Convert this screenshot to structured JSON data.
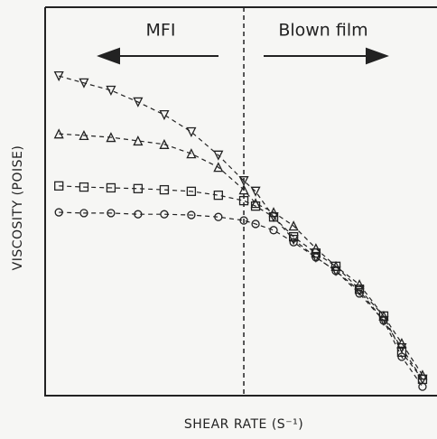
{
  "chart_data": {
    "type": "scatter",
    "x_label": "SHEAR RATE (S⁻¹)",
    "y_label": "VISCOSITY (POISE)",
    "annotations": [
      "MFI",
      "Blown film"
    ],
    "divider_x": 5.07,
    "xlim": [
      0,
      10
    ],
    "ylim": [
      0,
      10
    ],
    "color": "#222222",
    "fit_lines": true,
    "x": [
      0.35,
      0.99,
      1.68,
      2.37,
      3.04,
      3.73,
      4.42,
      5.07,
      5.37,
      5.83,
      6.34,
      6.91,
      7.42,
      8.02,
      8.64,
      9.1,
      9.63
    ],
    "series": [
      {
        "marker": "down-triangle",
        "values": [
          8.23,
          8.05,
          7.86,
          7.56,
          7.23,
          6.79,
          6.19,
          5.53,
          5.26,
          4.6,
          4.02,
          3.56,
          3.21,
          2.7,
          1.93,
          1.23,
          0.42
        ]
      },
      {
        "marker": "up-triangle",
        "values": [
          6.74,
          6.7,
          6.65,
          6.56,
          6.47,
          6.23,
          5.88,
          5.3,
          4.95,
          4.72,
          4.37,
          3.79,
          3.33,
          2.86,
          2.05,
          1.35,
          0.53
        ]
      },
      {
        "marker": "square",
        "values": [
          5.4,
          5.37,
          5.35,
          5.33,
          5.3,
          5.26,
          5.16,
          5.02,
          4.88,
          4.6,
          4.09,
          3.67,
          3.33,
          2.74,
          2.05,
          1.12,
          0.42
        ]
      },
      {
        "marker": "circle",
        "values": [
          4.72,
          4.7,
          4.7,
          4.67,
          4.67,
          4.65,
          4.6,
          4.51,
          4.42,
          4.26,
          3.95,
          3.56,
          3.21,
          2.63,
          1.93,
          1.0,
          0.23
        ]
      }
    ]
  }
}
